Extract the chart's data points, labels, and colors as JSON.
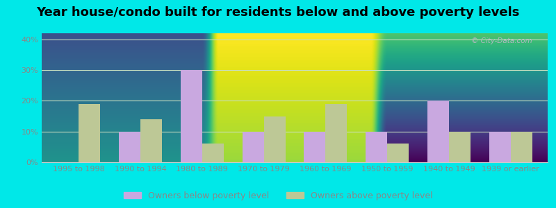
{
  "title": "Year house/condo built for residents below and above poverty levels",
  "categories": [
    "1995 to 1998",
    "1990 to 1994",
    "1980 to 1989",
    "1970 to 1979",
    "1960 to 1969",
    "1950 to 1959",
    "1940 to 1949",
    "1939 or earlier"
  ],
  "below_poverty": [
    0,
    10,
    30,
    10,
    10,
    10,
    20,
    10
  ],
  "above_poverty": [
    19,
    14,
    6,
    15,
    19,
    6,
    10,
    10
  ],
  "below_color": "#c9a8e0",
  "above_color": "#bdc896",
  "background_outer": "#00e8e8",
  "background_top": "#d4ede4",
  "background_bottom": "#dde8cc",
  "grid_color": "#c8dfc0",
  "yticks": [
    0,
    10,
    20,
    30,
    40
  ],
  "ylim": [
    0,
    42
  ],
  "legend_below": "Owners below poverty level",
  "legend_above": "Owners above poverty level",
  "title_fontsize": 13,
  "tick_fontsize": 8,
  "legend_fontsize": 9,
  "bar_width": 0.35,
  "tick_color": "#888888",
  "watermark_color": "#b0b8c0"
}
